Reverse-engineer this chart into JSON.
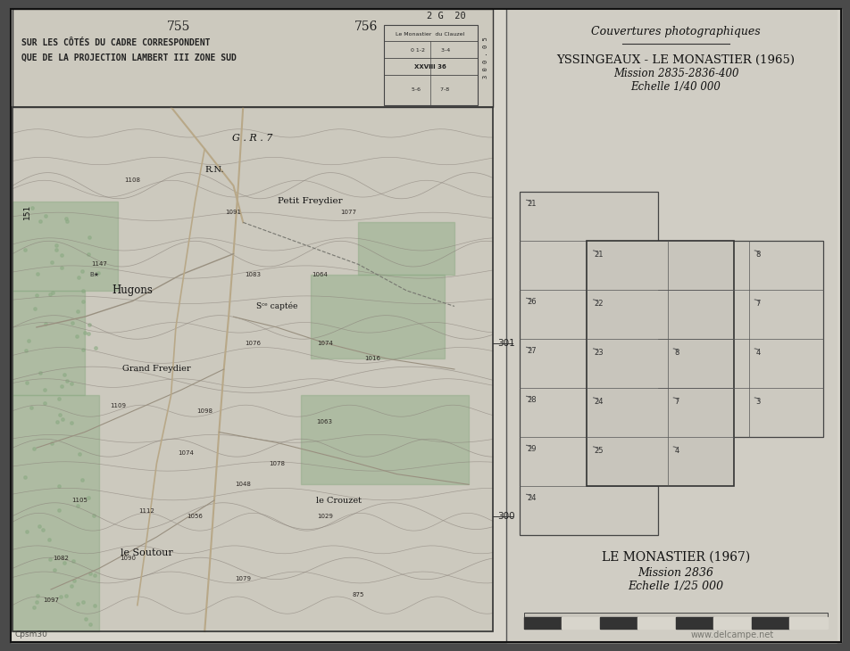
{
  "bg_color": "#4a4a4a",
  "paper_color": "#d8d5cc",
  "map_bg_color": "#ccc9be",
  "header_bg": "#ccc9be",
  "right_bg": "#d0cdc4",
  "text_color": "#222222",
  "border_color": "#333333",
  "map_green": "#8aaa82",
  "map_line_color": "#888078",
  "road_color": "#a09080",
  "title_755": "755",
  "title_756": "756",
  "grid_ref": "2 G  20",
  "header_line1": "SUR LES CÔTÉS DU CADRE CORRESPONDENT",
  "header_line2": "QUE DE LA PROJECTION LAMBERT III ZONE SUD",
  "gr7_label": "G . R . 7",
  "rn_label": "R.N.",
  "label_301": "301",
  "label_300": "300",
  "label_151": "151",
  "right_title": "Couvertures photographiques",
  "section1_title": "YSSINGEAUX - LE MONASTIER (1965)",
  "section1_line2": "Mission 2835-2836-400",
  "section1_line3": "Echelle 1/40 000",
  "section2_title": "LE MONASTIER (1967)",
  "section2_line2": "Mission 2836",
  "section2_line3": "Echelle 1/25 000",
  "watermark": "www.delcampe.net",
  "credit": "Cpsm30",
  "scale_bar_bottom": true
}
